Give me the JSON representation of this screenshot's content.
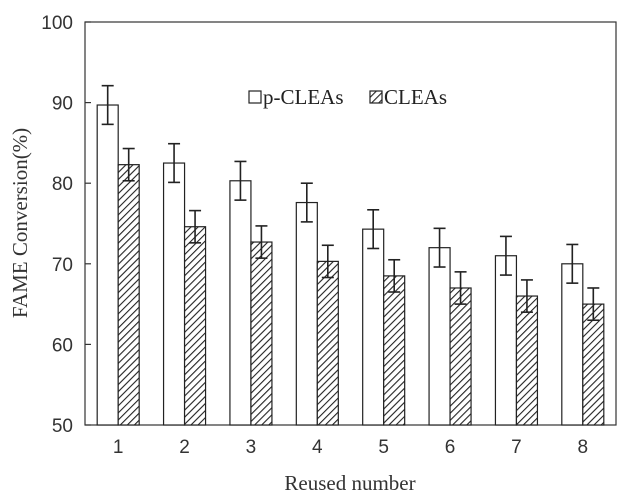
{
  "chart_data": {
    "type": "bar",
    "title": "",
    "xlabel": "Reused number",
    "ylabel": "FAME Conversion(%)",
    "ylim": [
      50,
      100
    ],
    "yticks": [
      50,
      60,
      70,
      80,
      90,
      100
    ],
    "categories": [
      "1",
      "2",
      "3",
      "4",
      "5",
      "6",
      "7",
      "8"
    ],
    "grid": false,
    "legend_position": "top-center",
    "series": [
      {
        "name": "p-CLEAs",
        "values": [
          89.7,
          82.5,
          80.3,
          77.6,
          74.3,
          72.0,
          71.0,
          70.0
        ],
        "errors": [
          2.4,
          2.4,
          2.4,
          2.4,
          2.4,
          2.4,
          2.4,
          2.4
        ],
        "fill": "#ffffff",
        "pattern": "none"
      },
      {
        "name": "CLEAs",
        "values": [
          82.3,
          74.6,
          72.7,
          70.3,
          68.5,
          67.0,
          66.0,
          65.0
        ],
        "errors": [
          2.0,
          2.0,
          2.0,
          2.0,
          2.0,
          2.0,
          2.0,
          2.0
        ],
        "fill": "#ffffff",
        "pattern": "diagonal-hatch"
      }
    ],
    "colors": {
      "stroke": "#222222",
      "axis": "#333333"
    }
  }
}
